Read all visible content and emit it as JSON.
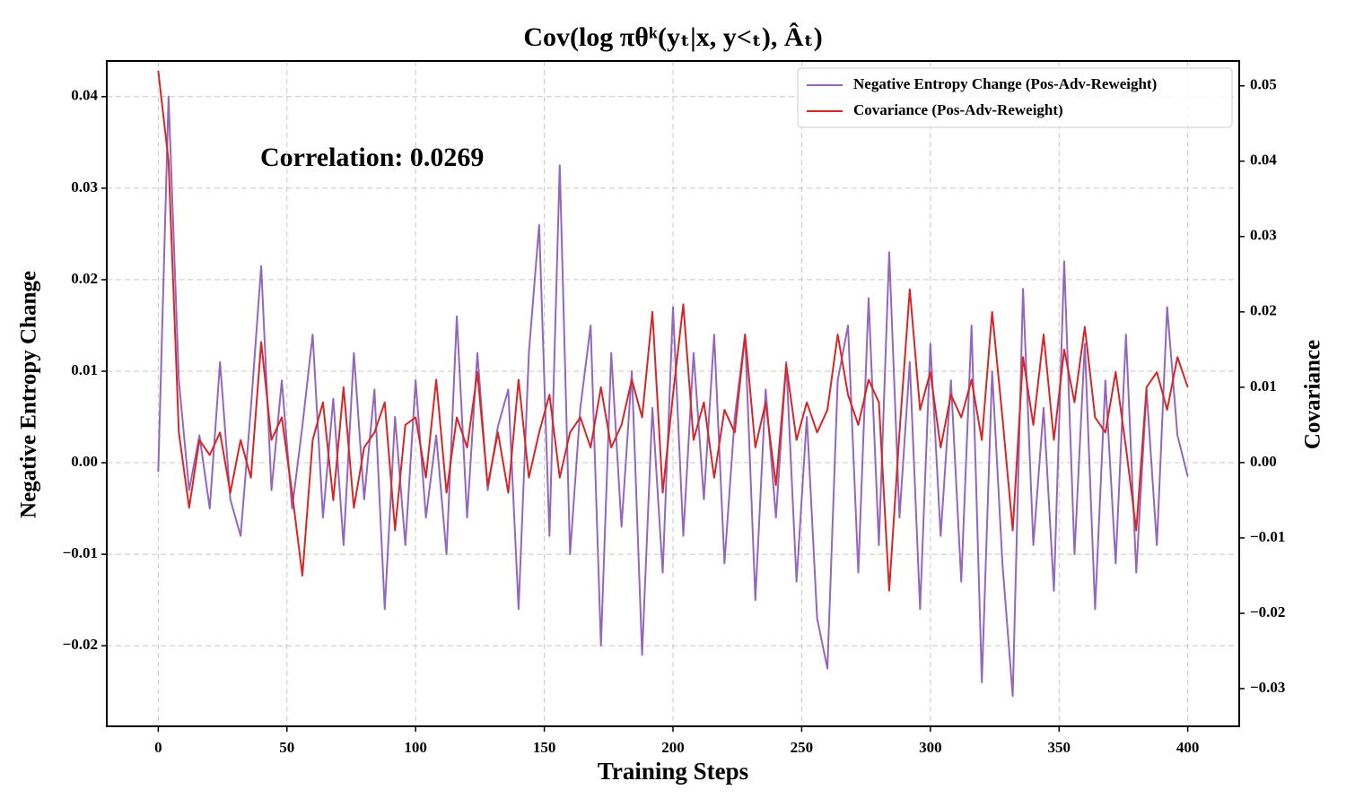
{
  "chart_data": {
    "type": "line",
    "title": "Cov(log πθᵏ(yₜ|x, y<ₜ), Âₜ)",
    "xlabel": "Training Steps",
    "ylabel": "Negative Entropy Change",
    "y2label": "Covariance",
    "annotation": "Correlation: 0.0269",
    "x": [
      0,
      4,
      8,
      12,
      16,
      20,
      24,
      28,
      32,
      36,
      40,
      44,
      48,
      52,
      56,
      60,
      64,
      68,
      72,
      76,
      80,
      84,
      88,
      92,
      96,
      100,
      104,
      108,
      112,
      116,
      120,
      124,
      128,
      132,
      136,
      140,
      144,
      148,
      152,
      156,
      160,
      164,
      168,
      172,
      176,
      180,
      184,
      188,
      192,
      196,
      200,
      204,
      208,
      212,
      216,
      220,
      224,
      228,
      232,
      236,
      240,
      244,
      248,
      252,
      256,
      260,
      264,
      268,
      272,
      276,
      280,
      284,
      288,
      292,
      296,
      300,
      304,
      308,
      312,
      316,
      320,
      324,
      328,
      332,
      336,
      340,
      344,
      348,
      352,
      356,
      360,
      364,
      368,
      372,
      376,
      380,
      384,
      388,
      392,
      396,
      400
    ],
    "series": [
      {
        "name": "Negative Entropy Change (Pos-Adv-Reweight)",
        "color": "#9467bd",
        "axis": "y",
        "values": [
          -0.001,
          0.04,
          0.009,
          -0.003,
          0.003,
          -0.005,
          0.011,
          -0.004,
          -0.008,
          0.006,
          0.0215,
          -0.003,
          0.009,
          -0.005,
          0.004,
          0.014,
          -0.006,
          0.007,
          -0.009,
          0.012,
          -0.004,
          0.008,
          -0.016,
          0.005,
          -0.009,
          0.009,
          -0.006,
          0.003,
          -0.01,
          0.016,
          -0.006,
          0.012,
          -0.003,
          0.004,
          0.008,
          -0.016,
          0.012,
          0.026,
          -0.008,
          0.0325,
          -0.01,
          0.006,
          0.015,
          -0.02,
          0.012,
          -0.007,
          0.01,
          -0.021,
          0.006,
          -0.012,
          0.017,
          -0.008,
          0.012,
          -0.004,
          0.014,
          -0.011,
          0.005,
          0.014,
          -0.015,
          0.008,
          -0.006,
          0.011,
          -0.013,
          0.005,
          -0.017,
          -0.0225,
          0.009,
          0.015,
          -0.012,
          0.018,
          -0.009,
          0.023,
          -0.006,
          0.011,
          -0.016,
          0.013,
          -0.008,
          0.009,
          -0.013,
          0.015,
          -0.024,
          0.01,
          -0.011,
          -0.0255,
          0.019,
          -0.009,
          0.006,
          -0.014,
          0.022,
          -0.01,
          0.013,
          -0.016,
          0.009,
          -0.011,
          0.014,
          -0.012,
          0.008,
          -0.009,
          0.017,
          0.003,
          -0.0015
        ]
      },
      {
        "name": "Covariance (Pos-Adv-Reweight)",
        "color": "#d62728",
        "axis": "y2",
        "values": [
          0.052,
          0.04,
          0.004,
          -0.006,
          0.003,
          0.001,
          0.004,
          -0.004,
          0.003,
          -0.002,
          0.016,
          0.003,
          0.006,
          -0.004,
          -0.015,
          0.003,
          0.008,
          -0.005,
          0.01,
          -0.006,
          0.002,
          0.004,
          0.008,
          -0.009,
          0.005,
          0.006,
          -0.002,
          0.011,
          -0.004,
          0.006,
          0.002,
          0.012,
          -0.003,
          0.004,
          -0.004,
          0.011,
          -0.002,
          0.004,
          0.009,
          -0.002,
          0.004,
          0.006,
          0.002,
          0.01,
          0.002,
          0.005,
          0.011,
          0.006,
          0.02,
          -0.004,
          0.009,
          0.021,
          0.003,
          0.008,
          -0.002,
          0.007,
          0.004,
          0.017,
          0.002,
          0.008,
          -0.003,
          0.013,
          0.003,
          0.008,
          0.004,
          0.007,
          0.017,
          0.009,
          0.005,
          0.011,
          0.008,
          -0.017,
          0.004,
          0.023,
          0.007,
          0.012,
          0.002,
          0.009,
          0.006,
          0.011,
          0.003,
          0.02,
          0.006,
          -0.009,
          0.014,
          0.005,
          0.017,
          0.003,
          0.015,
          0.008,
          0.018,
          0.006,
          0.004,
          0.012,
          0.002,
          -0.009,
          0.01,
          0.012,
          0.007,
          0.014,
          0.01
        ]
      }
    ],
    "xlim": [
      -20,
      420
    ],
    "xticks": [
      0,
      50,
      100,
      150,
      200,
      250,
      300,
      350,
      400
    ],
    "ylim": [
      -0.0288,
      0.0439
    ],
    "yticks": [
      {
        "value": -0.02,
        "label": "−0.02"
      },
      {
        "value": -0.01,
        "label": "−0.01"
      },
      {
        "value": 0,
        "label": "0.00"
      },
      {
        "value": 0.01,
        "label": "0.01"
      },
      {
        "value": 0.02,
        "label": "0.02"
      },
      {
        "value": 0.03,
        "label": "0.03"
      },
      {
        "value": 0.04,
        "label": "0.04"
      }
    ],
    "y2lim": [
      -0.035,
      0.0533
    ],
    "y2ticks": [
      {
        "value": -0.03,
        "label": "−0.03"
      },
      {
        "value": -0.02,
        "label": "−0.02"
      },
      {
        "value": -0.01,
        "label": "−0.01"
      },
      {
        "value": 0,
        "label": "0.00"
      },
      {
        "value": 0.01,
        "label": "0.01"
      },
      {
        "value": 0.02,
        "label": "0.02"
      },
      {
        "value": 0.03,
        "label": "0.03"
      },
      {
        "value": 0.04,
        "label": "0.04"
      },
      {
        "value": 0.05,
        "label": "0.05"
      }
    ],
    "grid": true,
    "legend": "upper right"
  }
}
